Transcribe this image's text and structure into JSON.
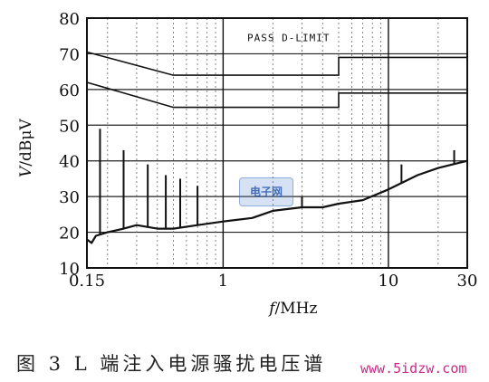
{
  "chart_data": {
    "type": "line",
    "title": "",
    "xlabel_italic": "f",
    "xlabel_unit": "/MHz",
    "ylabel_italic": "V",
    "ylabel_unit": "/dBμV",
    "x_scale": "log",
    "xlim": [
      0.15,
      30
    ],
    "ylim": [
      10,
      80
    ],
    "x_ticks": [
      {
        "value": 0.15,
        "label": "0.15"
      },
      {
        "value": 1,
        "label": "1"
      },
      {
        "value": 10,
        "label": "10"
      },
      {
        "value": 30,
        "label": "30"
      }
    ],
    "y_ticks": [
      10,
      20,
      30,
      40,
      50,
      60,
      70,
      80
    ],
    "grid": true,
    "annotation": "PASS D-LIMIT",
    "limit_lines": [
      {
        "x": [
          0.15,
          0.5,
          5,
          5,
          30
        ],
        "y": [
          70.5,
          64,
          64,
          69,
          69
        ]
      },
      {
        "x": [
          0.15,
          0.5,
          5,
          5,
          30
        ],
        "y": [
          62,
          55,
          55,
          59,
          59
        ]
      }
    ],
    "measurement": {
      "x": [
        0.15,
        0.16,
        0.17,
        0.2,
        0.25,
        0.3,
        0.4,
        0.5,
        0.7,
        1,
        1.5,
        2,
        3,
        4,
        5,
        7,
        10,
        15,
        20,
        30
      ],
      "y": [
        18,
        17,
        19,
        20,
        21,
        22,
        21,
        21,
        22,
        23,
        24,
        26,
        27,
        27,
        28,
        29,
        32,
        36,
        38,
        40
      ]
    },
    "peaks": [
      {
        "x": 0.18,
        "y": 49
      },
      {
        "x": 0.25,
        "y": 43
      },
      {
        "x": 0.35,
        "y": 39
      },
      {
        "x": 0.45,
        "y": 36
      },
      {
        "x": 0.55,
        "y": 35
      },
      {
        "x": 0.7,
        "y": 33
      },
      {
        "x": 3,
        "y": 30
      },
      {
        "x": 12,
        "y": 39
      },
      {
        "x": 25,
        "y": 43
      }
    ]
  },
  "figure": {
    "caption": "图 3  L 端注入电源骚扰电压谱",
    "watermark_logo": "电子网",
    "watermark_url": "www.5idzw.com"
  }
}
